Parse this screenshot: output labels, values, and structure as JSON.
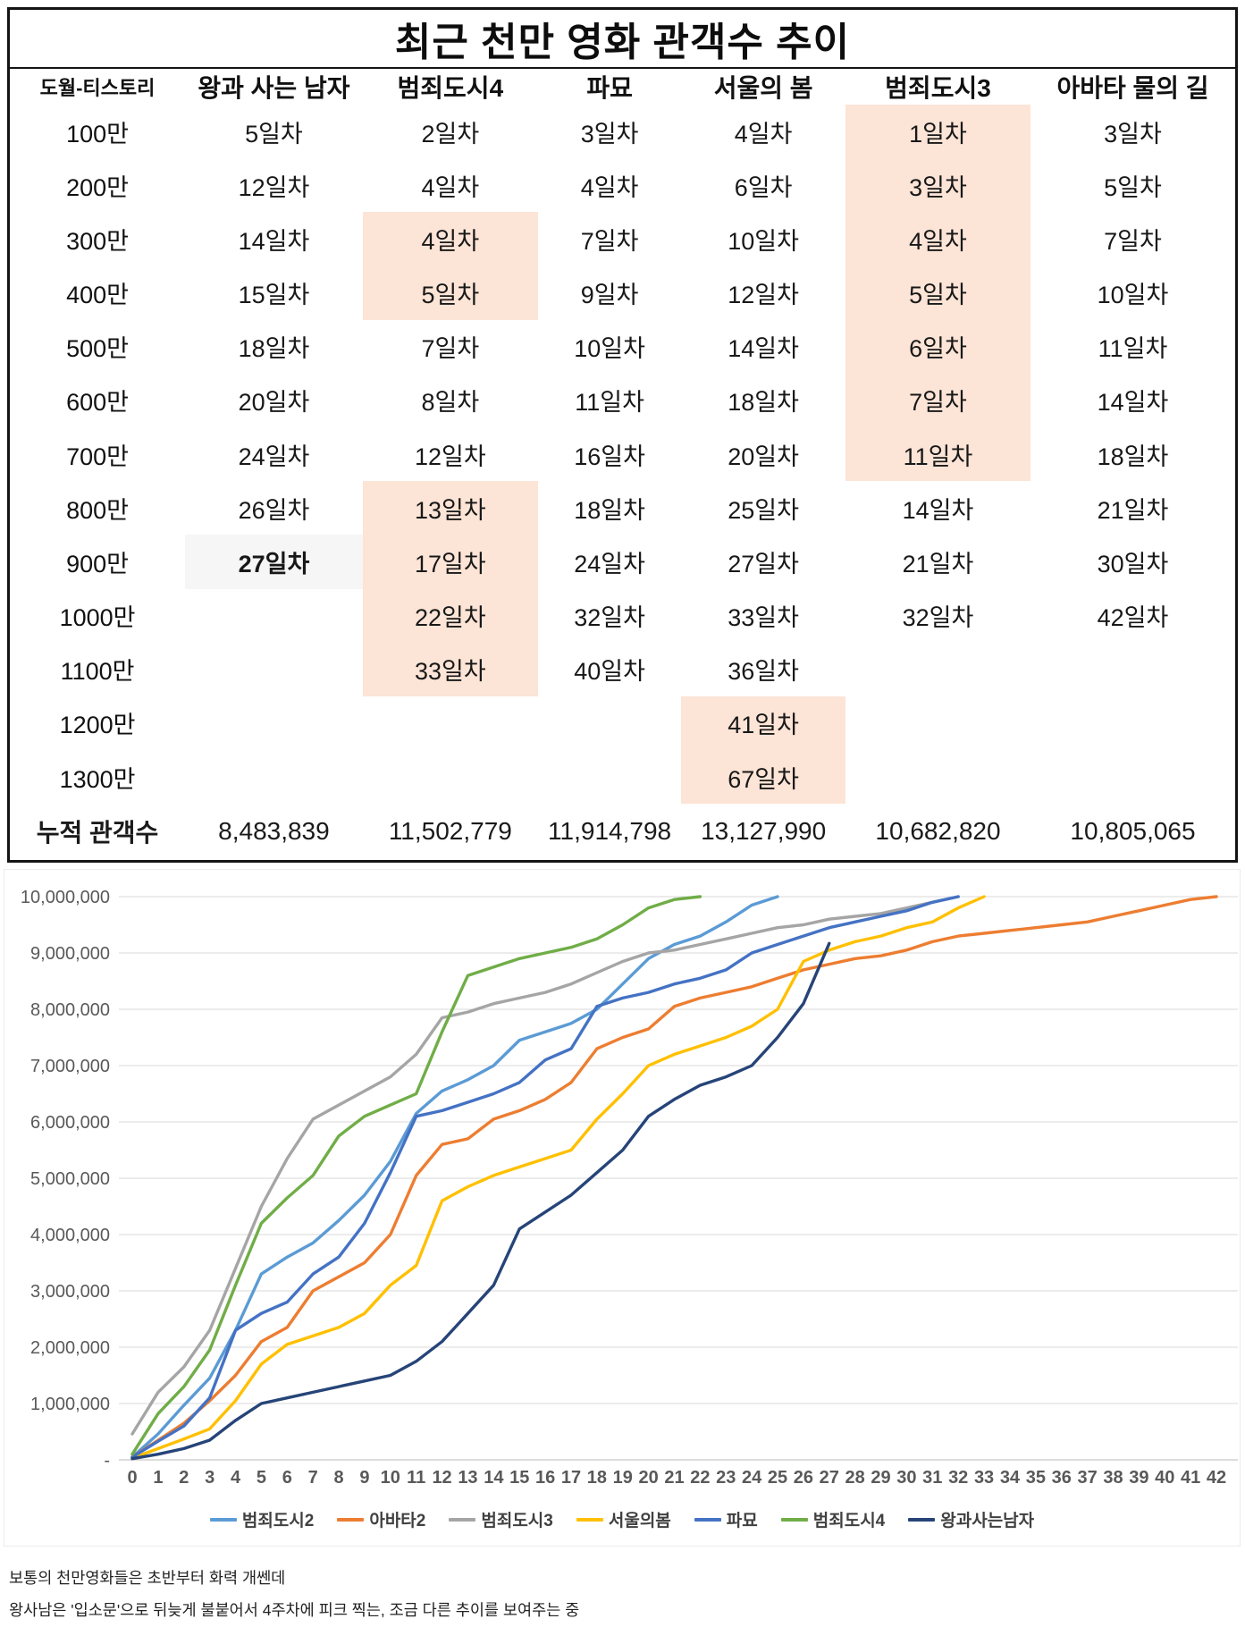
{
  "table": {
    "title": "최근 천만 영화 관객수 추이",
    "columns": [
      "도월-티스토리",
      "왕과 사는 남자",
      "범죄도시4",
      "파묘",
      "서울의 봄",
      "범죄도시3",
      "아바타 물의 길"
    ],
    "highlight_color": "#FCE4D6",
    "milestone_rows": [
      {
        "label": "100만",
        "cells": [
          {
            "t": "5일차"
          },
          {
            "t": "2일차"
          },
          {
            "t": "3일차"
          },
          {
            "t": "4일차"
          },
          {
            "t": "1일차",
            "s": "peach"
          },
          {
            "t": "3일차"
          }
        ]
      },
      {
        "label": "200만",
        "cells": [
          {
            "t": "12일차"
          },
          {
            "t": "4일차"
          },
          {
            "t": "4일차"
          },
          {
            "t": "6일차"
          },
          {
            "t": "3일차",
            "s": "peach"
          },
          {
            "t": "5일차"
          }
        ]
      },
      {
        "label": "300만",
        "cells": [
          {
            "t": "14일차"
          },
          {
            "t": "4일차",
            "s": "peach"
          },
          {
            "t": "7일차"
          },
          {
            "t": "10일차"
          },
          {
            "t": "4일차",
            "s": "peach"
          },
          {
            "t": "7일차"
          }
        ]
      },
      {
        "label": "400만",
        "cells": [
          {
            "t": "15일차"
          },
          {
            "t": "5일차",
            "s": "peach"
          },
          {
            "t": "9일차"
          },
          {
            "t": "12일차"
          },
          {
            "t": "5일차",
            "s": "peach"
          },
          {
            "t": "10일차"
          }
        ]
      },
      {
        "label": "500만",
        "cells": [
          {
            "t": "18일차"
          },
          {
            "t": "7일차"
          },
          {
            "t": "10일차"
          },
          {
            "t": "14일차"
          },
          {
            "t": "6일차",
            "s": "peach"
          },
          {
            "t": "11일차"
          }
        ]
      },
      {
        "label": "600만",
        "cells": [
          {
            "t": "20일차"
          },
          {
            "t": "8일차"
          },
          {
            "t": "11일차"
          },
          {
            "t": "18일차"
          },
          {
            "t": "7일차",
            "s": "peach"
          },
          {
            "t": "14일차"
          }
        ]
      },
      {
        "label": "700만",
        "cells": [
          {
            "t": "24일차"
          },
          {
            "t": "12일차"
          },
          {
            "t": "16일차"
          },
          {
            "t": "20일차"
          },
          {
            "t": "11일차",
            "s": "peach"
          },
          {
            "t": "18일차"
          }
        ]
      },
      {
        "label": "800만",
        "cells": [
          {
            "t": "26일차"
          },
          {
            "t": "13일차",
            "s": "peach"
          },
          {
            "t": "18일차"
          },
          {
            "t": "25일차"
          },
          {
            "t": "14일차"
          },
          {
            "t": "21일차"
          }
        ]
      },
      {
        "label": "900만",
        "cells": [
          {
            "t": "27일차",
            "s": "gray",
            "b": true
          },
          {
            "t": "17일차",
            "s": "peach"
          },
          {
            "t": "24일차"
          },
          {
            "t": "27일차"
          },
          {
            "t": "21일차"
          },
          {
            "t": "30일차"
          }
        ]
      },
      {
        "label": "1000만",
        "cells": [
          {
            "t": ""
          },
          {
            "t": "22일차",
            "s": "peach"
          },
          {
            "t": "32일차"
          },
          {
            "t": "33일차"
          },
          {
            "t": "32일차"
          },
          {
            "t": "42일차"
          }
        ]
      },
      {
        "label": "1100만",
        "cells": [
          {
            "t": ""
          },
          {
            "t": "33일차",
            "s": "peach"
          },
          {
            "t": "40일차"
          },
          {
            "t": "36일차"
          },
          {
            "t": ""
          },
          {
            "t": ""
          }
        ]
      },
      {
        "label": "1200만",
        "cells": [
          {
            "t": ""
          },
          {
            "t": ""
          },
          {
            "t": ""
          },
          {
            "t": "41일차",
            "s": "peach"
          },
          {
            "t": ""
          },
          {
            "t": ""
          }
        ]
      },
      {
        "label": "1300만",
        "cells": [
          {
            "t": ""
          },
          {
            "t": ""
          },
          {
            "t": ""
          },
          {
            "t": "67일차",
            "s": "peach"
          },
          {
            "t": ""
          },
          {
            "t": ""
          }
        ]
      }
    ],
    "cumulative_row": {
      "label": "누적 관객수",
      "values": [
        "8,483,839",
        "11,502,779",
        "11,914,798",
        "13,127,990",
        "10,682,820",
        "10,805,065"
      ]
    }
  },
  "chart_data": {
    "type": "line",
    "x_axis": {
      "min": 0,
      "max": 42,
      "tick_step": 1,
      "meaning": "일차 (days since release)"
    },
    "y_axis": {
      "min": 0,
      "max": 10000000,
      "tick_step": 1000000,
      "zero_label": "-",
      "grid": true
    },
    "unit": "millions of cumulative admissions",
    "legend_position": "bottom",
    "series": [
      {
        "name": "범죄도시2",
        "color": "#5B9BD5",
        "values": [
          0.05,
          0.46,
          0.97,
          1.45,
          2.3,
          3.3,
          3.6,
          3.85,
          4.25,
          4.7,
          5.3,
          6.15,
          6.55,
          6.75,
          7.0,
          7.45,
          7.6,
          7.75,
          8.0,
          8.45,
          8.9,
          9.15,
          9.3,
          9.55,
          9.85,
          10.0
        ]
      },
      {
        "name": "아바타2",
        "color": "#ED7D31",
        "values": [
          0.05,
          0.35,
          0.65,
          1.05,
          1.5,
          2.1,
          2.35,
          3.0,
          3.25,
          3.5,
          4.0,
          5.05,
          5.6,
          5.7,
          6.05,
          6.2,
          6.4,
          6.7,
          7.3,
          7.5,
          7.65,
          8.05,
          8.2,
          8.3,
          8.4,
          8.55,
          8.7,
          8.8,
          8.9,
          8.95,
          9.05,
          9.2,
          9.3,
          9.35,
          9.4,
          9.45,
          9.5,
          9.55,
          9.65,
          9.75,
          9.85,
          9.95,
          10.0
        ]
      },
      {
        "name": "범죄도시3",
        "color": "#A5A5A5",
        "values": [
          0.46,
          1.2,
          1.65,
          2.3,
          3.4,
          4.5,
          5.35,
          6.05,
          6.3,
          6.55,
          6.8,
          7.2,
          7.85,
          7.95,
          8.1,
          8.2,
          8.3,
          8.45,
          8.65,
          8.85,
          9.0,
          9.05,
          9.15,
          9.25,
          9.35,
          9.45,
          9.5,
          9.6,
          9.65,
          9.7,
          9.8,
          9.9,
          10.0
        ]
      },
      {
        "name": "서울의봄",
        "color": "#FFC000",
        "values": [
          0.03,
          0.2,
          0.37,
          0.55,
          1.05,
          1.7,
          2.05,
          2.2,
          2.35,
          2.6,
          3.1,
          3.45,
          4.6,
          4.85,
          5.05,
          5.2,
          5.35,
          5.5,
          6.05,
          6.5,
          7.0,
          7.2,
          7.35,
          7.5,
          7.7,
          8.0,
          8.85,
          9.05,
          9.2,
          9.3,
          9.45,
          9.55,
          9.8,
          10.0
        ]
      },
      {
        "name": "파묘",
        "color": "#4472C4",
        "values": [
          0.05,
          0.33,
          0.6,
          1.1,
          2.3,
          2.6,
          2.8,
          3.3,
          3.6,
          4.2,
          5.1,
          6.1,
          6.2,
          6.35,
          6.5,
          6.7,
          7.1,
          7.3,
          8.05,
          8.2,
          8.3,
          8.45,
          8.55,
          8.7,
          9.0,
          9.15,
          9.3,
          9.45,
          9.55,
          9.65,
          9.75,
          9.9,
          10.0
        ]
      },
      {
        "name": "범죄도시4",
        "color": "#70AD47",
        "values": [
          0.1,
          0.82,
          1.3,
          1.95,
          3.1,
          4.2,
          4.65,
          5.05,
          5.75,
          6.1,
          6.3,
          6.5,
          7.6,
          8.6,
          8.75,
          8.9,
          9.0,
          9.1,
          9.25,
          9.5,
          9.8,
          9.95,
          10.0
        ]
      },
      {
        "name": "왕과사는남자",
        "color": "#264478",
        "values": [
          0.02,
          0.1,
          0.2,
          0.35,
          0.7,
          1.0,
          1.1,
          1.2,
          1.3,
          1.4,
          1.5,
          1.75,
          2.1,
          2.6,
          3.1,
          4.1,
          4.4,
          4.7,
          5.1,
          5.5,
          6.1,
          6.4,
          6.65,
          6.8,
          7.0,
          7.5,
          8.1,
          9.17
        ]
      }
    ]
  },
  "caption": {
    "line1": "보통의 천만영화들은 초반부터 화력 개쎈데",
    "line2": "왕사남은 '입소문'으로 뒤늦게 불붙어서 4주차에 피크 찍는, 조금 다른 추이를 보여주는 중"
  }
}
